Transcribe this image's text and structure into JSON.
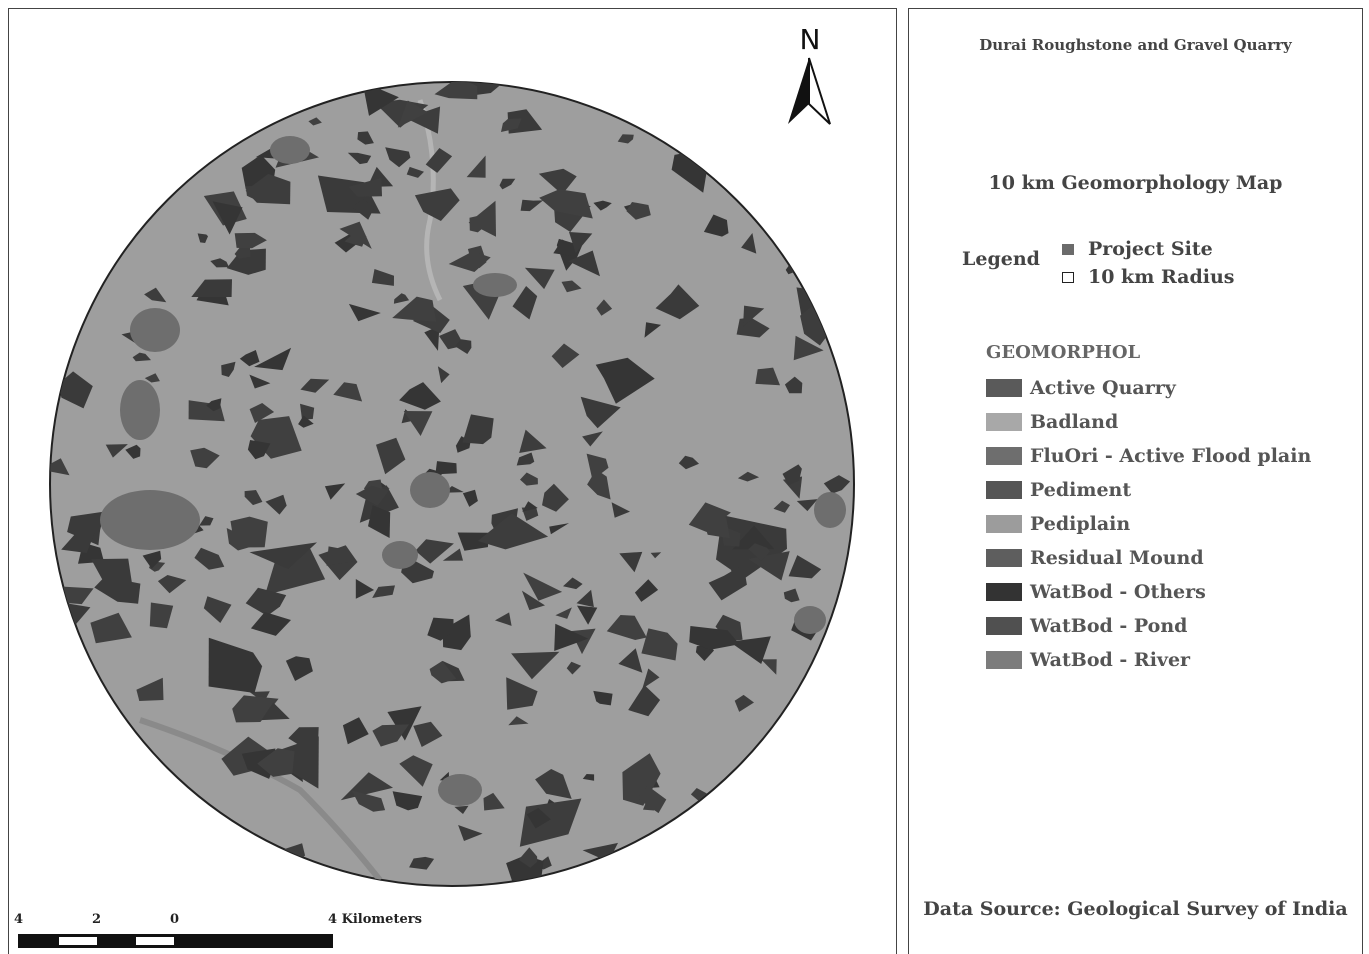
{
  "map": {
    "background": "#9e9e9e",
    "feature_color": "#3a3a3a",
    "north_label": "N",
    "scale_bar": {
      "labels": [
        "4",
        "2",
        "0",
        "4 Kilometers"
      ]
    }
  },
  "side_panel": {
    "quarry_title": "Durai Roughstone and Gravel Quarry",
    "map_title": "10 km Geomorphology  Map",
    "legend_label": "Legend",
    "legend_items": [
      {
        "label": "Project Site",
        "color": "#6b6b6b"
      },
      {
        "label": "10 km Radius",
        "color": "#ffffff"
      }
    ],
    "geomorph_heading": "GEOMORPHOL",
    "geomorph_classes": [
      {
        "label": "Active Quarry",
        "color": "#5a5a5a"
      },
      {
        "label": "Badland",
        "color": "#a8a8a8"
      },
      {
        "label": "FluOri - Active Flood plain",
        "color": "#6e6e6e"
      },
      {
        "label": "Pediment",
        "color": "#555555"
      },
      {
        "label": "Pediplain",
        "color": "#9c9c9c"
      },
      {
        "label": "Residual Mound",
        "color": "#5e5e5e"
      },
      {
        "label": "WatBod - Others",
        "color": "#333333"
      },
      {
        "label": "WatBod - Pond",
        "color": "#505050"
      },
      {
        "label": "WatBod - River",
        "color": "#7c7c7c"
      }
    ],
    "data_source": "Data Source: Geological Survey of India"
  }
}
